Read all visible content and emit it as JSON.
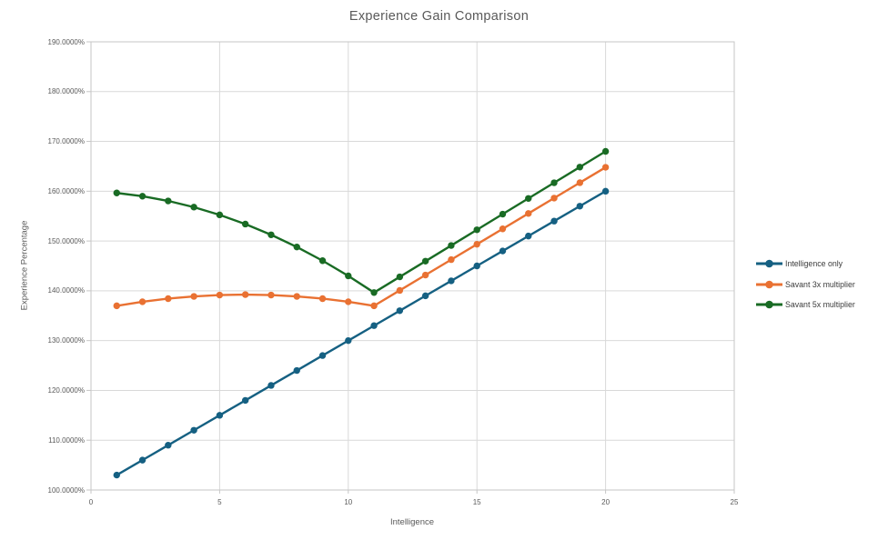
{
  "chart_data": {
    "type": "line",
    "title": "Experience Gain Comparison",
    "xlabel": "Intelligence",
    "ylabel": "Experience Percentage",
    "x": [
      1,
      2,
      3,
      4,
      5,
      6,
      7,
      8,
      9,
      10,
      11,
      12,
      13,
      14,
      15,
      16,
      17,
      18,
      19,
      20
    ],
    "series": [
      {
        "name": "Intelligence only",
        "color": "#156082",
        "values": [
          103,
          106,
          109,
          112,
          115,
          118,
          121,
          124,
          127,
          130,
          133,
          136,
          139,
          142,
          145,
          148,
          151,
          154,
          157,
          160
        ]
      },
      {
        "name": "Savant 3x multiplier",
        "color": "#E97132",
        "values": [
          136.99,
          137.8,
          138.43,
          138.88,
          139.15,
          139.24,
          139.15,
          138.88,
          138.43,
          137.8,
          136.99,
          140.08,
          143.17,
          146.26,
          149.35,
          152.44,
          155.53,
          158.62,
          161.71,
          164.8
        ]
      },
      {
        "name": "Savant 5x multiplier",
        "color": "#196B24",
        "values": [
          159.65,
          159,
          158.05,
          156.8,
          155.25,
          153.4,
          151.25,
          148.8,
          146.05,
          143,
          139.65,
          142.8,
          145.95,
          149.1,
          152.25,
          155.4,
          158.55,
          161.7,
          164.85,
          168
        ]
      }
    ],
    "xlim": [
      0,
      25
    ],
    "ylim": [
      100,
      190
    ],
    "x_ticks": {
      "values": [
        0,
        5,
        10,
        15,
        20,
        25
      ],
      "labels": [
        "0",
        "5",
        "10",
        "15",
        "20",
        "25"
      ]
    },
    "y_ticks": {
      "values": [
        100,
        110,
        120,
        130,
        140,
        150,
        160,
        170,
        180,
        190
      ],
      "labels": [
        "100.0000%",
        "110.0000%",
        "120.0000%",
        "130.0000%",
        "140.0000%",
        "150.0000%",
        "160.0000%",
        "170.0000%",
        "180.0000%",
        "190.0000%"
      ]
    },
    "grid": true,
    "legend_position": "right",
    "colors": {
      "grid": "#D9D9D9",
      "axis_border": "#C6C6C6",
      "title_text": "#595959",
      "tick_text": "#595959",
      "legend_text": "#3B3B3B",
      "background": "#FFFFFF"
    }
  }
}
